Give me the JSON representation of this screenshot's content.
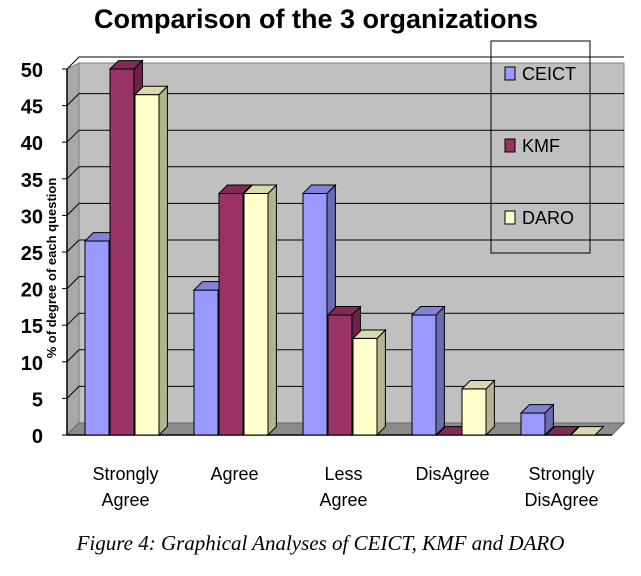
{
  "caption": "Figure 4: Graphical Analyses of CEICT, KMF and DARO",
  "chart_data": {
    "type": "bar",
    "title": "Comparison of the 3 organizations",
    "ylabel": "% of degree of each question",
    "xlabel": "",
    "ylim": [
      0,
      50
    ],
    "yticks": [
      0,
      5,
      10,
      15,
      20,
      25,
      30,
      35,
      40,
      45,
      50
    ],
    "grid": true,
    "three_d": true,
    "legend_position": "top-right",
    "categories": [
      [
        "Strongly",
        "Agree"
      ],
      [
        "Agree"
      ],
      [
        "Less",
        "Agree"
      ],
      [
        "DisAgree"
      ],
      [
        "Strongly",
        "DisAgree"
      ]
    ],
    "series": [
      {
        "name": "CEICT",
        "color": "#9999ff",
        "values": [
          26.5,
          19.8,
          33,
          16.4,
          3
        ]
      },
      {
        "name": "KMF",
        "color": "#993366",
        "values": [
          50,
          33,
          16.4,
          0,
          0
        ]
      },
      {
        "name": "DARO",
        "color": "#ffffcc",
        "values": [
          46.5,
          33,
          13.2,
          6.3,
          0
        ]
      }
    ],
    "plot_background": "#c0c0c0"
  }
}
